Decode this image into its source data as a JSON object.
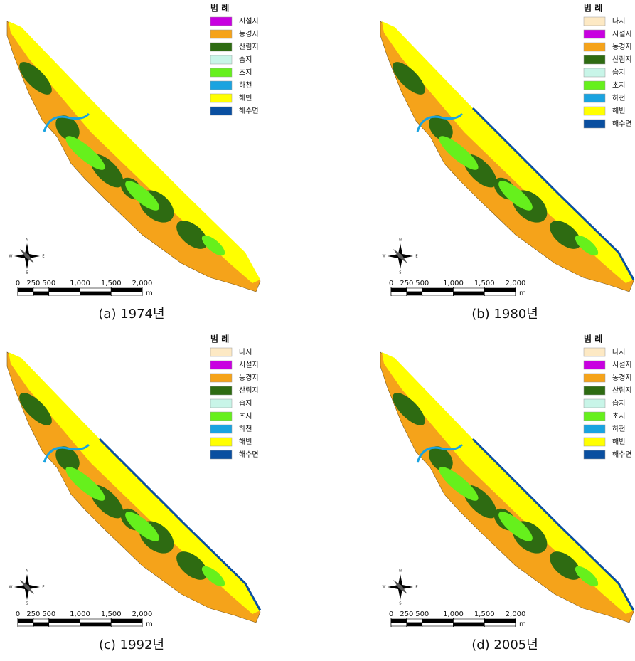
{
  "panels": [
    {
      "caption": "(a)  1974년",
      "legend": {
        "title": "범 례",
        "items": [
          {
            "name": "시설지",
            "color": "#c800e0"
          },
          {
            "name": "농경지",
            "color": "#f5a31a"
          },
          {
            "name": "산림지",
            "color": "#2e6b12"
          },
          {
            "name": "습지",
            "color": "#c8f5e8"
          },
          {
            "name": "초지",
            "color": "#66f01c"
          },
          {
            "name": "하천",
            "color": "#1aa3e0"
          },
          {
            "name": "해빈",
            "color": "#ffff00"
          },
          {
            "name": "해수면",
            "color": "#0a4fa0"
          }
        ]
      },
      "scale": {
        "ticks": [
          0,
          250,
          500,
          {
            "value": 1000,
            "label": "1,000"
          },
          {
            "value": 1500,
            "label": "1,500"
          },
          {
            "value": 2000,
            "label": "2,000"
          }
        ],
        "unit": "m"
      },
      "compass": {
        "n": "N",
        "e": "E",
        "s": "S",
        "w": "W"
      }
    },
    {
      "caption": "(b)  1980년",
      "legend": {
        "title": "범 례",
        "items": [
          {
            "name": "나지",
            "color": "#fde9c4"
          },
          {
            "name": "시설지",
            "color": "#c800e0"
          },
          {
            "name": "농경지",
            "color": "#f5a31a"
          },
          {
            "name": "산림지",
            "color": "#2e6b12"
          },
          {
            "name": "습지",
            "color": "#c8f5e8"
          },
          {
            "name": "초지",
            "color": "#66f01c"
          },
          {
            "name": "하천",
            "color": "#1aa3e0"
          },
          {
            "name": "해빈",
            "color": "#ffff00"
          },
          {
            "name": "해수면",
            "color": "#0a4fa0"
          }
        ]
      },
      "scale": {
        "ticks": [
          0,
          250,
          500,
          {
            "value": 1000,
            "label": "1,000"
          },
          {
            "value": 1500,
            "label": "1,500"
          },
          {
            "value": 2000,
            "label": "2,000"
          }
        ],
        "unit": "m"
      },
      "compass": {
        "n": "N",
        "e": "E",
        "s": "S",
        "w": "W"
      }
    },
    {
      "caption": "(c)  1992년",
      "legend": {
        "title": "범 례",
        "items": [
          {
            "name": "나지",
            "color": "#fde9c4"
          },
          {
            "name": "시설지",
            "color": "#c800e0"
          },
          {
            "name": "농경지",
            "color": "#f5a31a"
          },
          {
            "name": "산림지",
            "color": "#2e6b12"
          },
          {
            "name": "습지",
            "color": "#c8f5e8"
          },
          {
            "name": "초지",
            "color": "#66f01c"
          },
          {
            "name": "하천",
            "color": "#1aa3e0"
          },
          {
            "name": "해빈",
            "color": "#ffff00"
          },
          {
            "name": "해수면",
            "color": "#0a4fa0"
          }
        ]
      },
      "scale": {
        "ticks": [
          0,
          250,
          500,
          {
            "value": 1000,
            "label": "1,000"
          },
          {
            "value": 1500,
            "label": "1,500"
          },
          {
            "value": 2000,
            "label": "2,000"
          }
        ],
        "unit": "m"
      },
      "compass": {
        "n": "N",
        "e": "E",
        "s": "S",
        "w": "W"
      }
    },
    {
      "caption": "(d)  2005년",
      "legend": {
        "title": "범 례",
        "items": [
          {
            "name": "나지",
            "color": "#fde9c4"
          },
          {
            "name": "시설지",
            "color": "#c800e0"
          },
          {
            "name": "농경지",
            "color": "#f5a31a"
          },
          {
            "name": "산림지",
            "color": "#2e6b12"
          },
          {
            "name": "습지",
            "color": "#c8f5e8"
          },
          {
            "name": "초지",
            "color": "#66f01c"
          },
          {
            "name": "하천",
            "color": "#1aa3e0"
          },
          {
            "name": "해빈",
            "color": "#ffff00"
          },
          {
            "name": "해수면",
            "color": "#0a4fa0"
          }
        ]
      },
      "scale": {
        "ticks": [
          0,
          250,
          500,
          {
            "value": 1000,
            "label": "1,000"
          },
          {
            "value": 1500,
            "label": "1,500"
          },
          {
            "value": 2000,
            "label": "2,000"
          }
        ],
        "unit": "m"
      },
      "compass": {
        "n": "N",
        "e": "E",
        "s": "S",
        "w": "W"
      }
    }
  ]
}
